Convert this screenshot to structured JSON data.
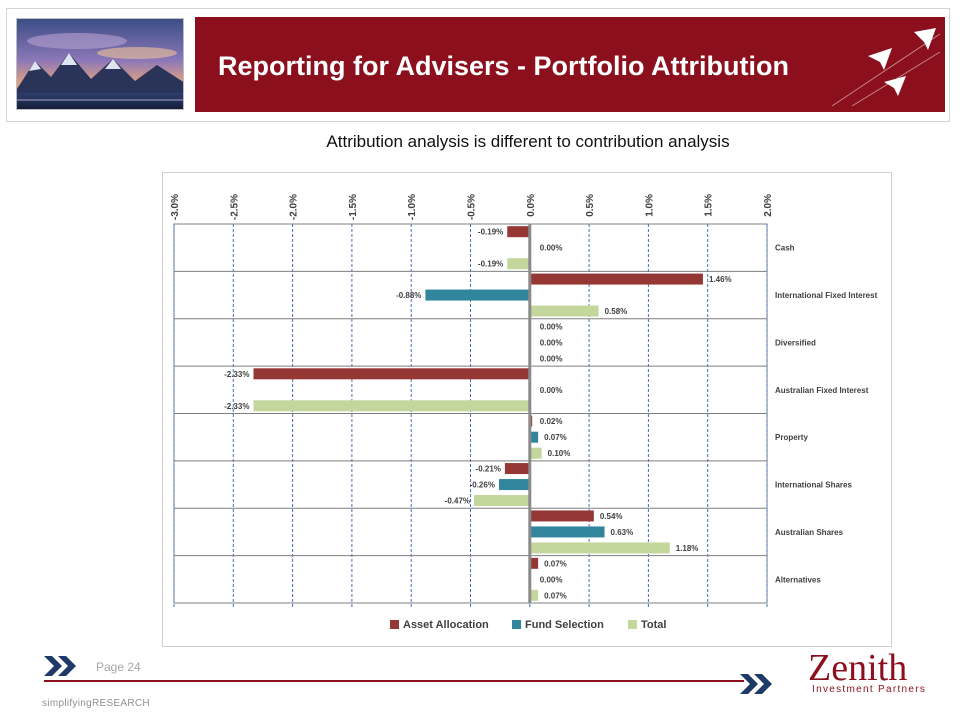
{
  "header": {
    "title": "Reporting for Advisers - Portfolio Attribution"
  },
  "subtitle": "Attribution analysis is different to contribution analysis",
  "colors": {
    "brand": "#8B0F1C",
    "asset_allocation": "#953735",
    "fund_selection": "#31859C",
    "total": "#C3D69B"
  },
  "footer": {
    "page": "Page 24",
    "brand": "simplifyingRESEARCH",
    "logo_name": "Zenith",
    "logo_tagline": "Investment Partners"
  },
  "chart_data": {
    "type": "bar",
    "orientation": "horizontal",
    "title": "",
    "xlabel": "",
    "ylabel": "",
    "xlim": [
      -3.0,
      2.0
    ],
    "x_ticks": [
      "-3.0%",
      "-2.5%",
      "-2.0%",
      "-1.5%",
      "-1.0%",
      "-0.5%",
      "0.0%",
      "0.5%",
      "1.0%",
      "1.5%",
      "2.0%"
    ],
    "x_tick_values": [
      -3.0,
      -2.5,
      -2.0,
      -1.5,
      -1.0,
      -0.5,
      0.0,
      0.5,
      1.0,
      1.5,
      2.0
    ],
    "grid": "vertical-dashed",
    "legend_position": "bottom",
    "categories": [
      "Cash",
      "International Fixed Interest",
      "Diversified",
      "Australian Fixed Interest",
      "Property",
      "International Shares",
      "Australian Shares",
      "Alternatives"
    ],
    "series": [
      {
        "name": "Asset Allocation",
        "values": [
          -0.19,
          1.46,
          0.0,
          -2.33,
          0.02,
          -0.21,
          0.54,
          0.07
        ],
        "labels": [
          "-0.19%",
          "1.46%",
          "0.00%",
          "-2.33%",
          "0.02%",
          "-0.21%",
          "0.54%",
          "0.07%"
        ]
      },
      {
        "name": "Fund Selection",
        "values": [
          0.0,
          -0.88,
          0.0,
          0.0,
          0.07,
          -0.26,
          0.63,
          0.0
        ],
        "labels": [
          "0.00%",
          "-0.88%",
          "0.00%",
          "0.00%",
          "0.07%",
          "-0.26%",
          "0.63%",
          "0.00%"
        ]
      },
      {
        "name": "Total",
        "values": [
          -0.19,
          0.58,
          0.0,
          -2.33,
          0.1,
          -0.47,
          1.18,
          0.07
        ],
        "labels": [
          "-0.19%",
          "0.58%",
          "0.00%",
          "-2.33%",
          "0.10%",
          "-0.47%",
          "1.18%",
          "0.07%"
        ]
      }
    ]
  }
}
